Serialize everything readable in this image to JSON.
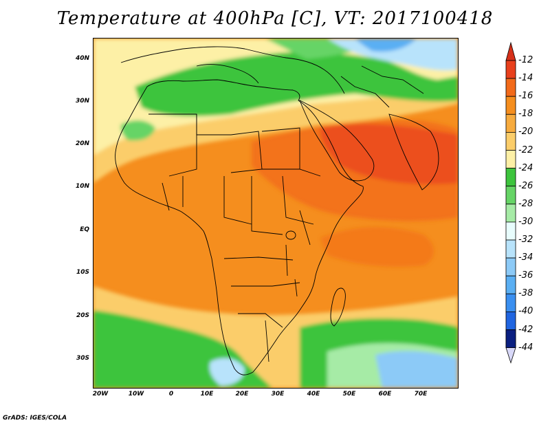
{
  "title": "Temperature at 400hPa [C], VT: 2017100418",
  "footer": "GrADS: IGES/COLA",
  "map": {
    "lat_labels": [
      "40N",
      "30N",
      "20N",
      "10N",
      "EQ",
      "10S",
      "20S",
      "30S"
    ],
    "lat_values": [
      40,
      30,
      20,
      10,
      0,
      -10,
      -20,
      -30
    ],
    "lon_labels": [
      "20W",
      "10W",
      "0",
      "10E",
      "20E",
      "30E",
      "40E",
      "50E",
      "60E",
      "70E"
    ],
    "lon_values": [
      -20,
      -10,
      0,
      10,
      20,
      30,
      40,
      50,
      60,
      70
    ],
    "lon_range": [
      -22,
      80
    ],
    "lat_range": [
      -37,
      45
    ]
  },
  "colorbar": {
    "labels": [
      "-12",
      "-14",
      "-16",
      "-18",
      "-20",
      "-22",
      "-24",
      "-26",
      "-28",
      "-30",
      "-32",
      "-34",
      "-36",
      "-38",
      "-40",
      "-42",
      "-44"
    ],
    "colors": [
      "#e8401c",
      "#f26a1a",
      "#f58e1e",
      "#f7ab3e",
      "#fbcd6a",
      "#fdf0a6",
      "#3dc43d",
      "#66d466",
      "#a6eba6",
      "#e8fdfd",
      "#b8e3fb",
      "#8ccaf7",
      "#5aaff3",
      "#3a8ff0",
      "#2065e0",
      "#1043c0",
      "#0a1f80"
    ],
    "top_arrow_color": "#d6301a",
    "bottom_arrow_color": "#d8d8f8"
  }
}
